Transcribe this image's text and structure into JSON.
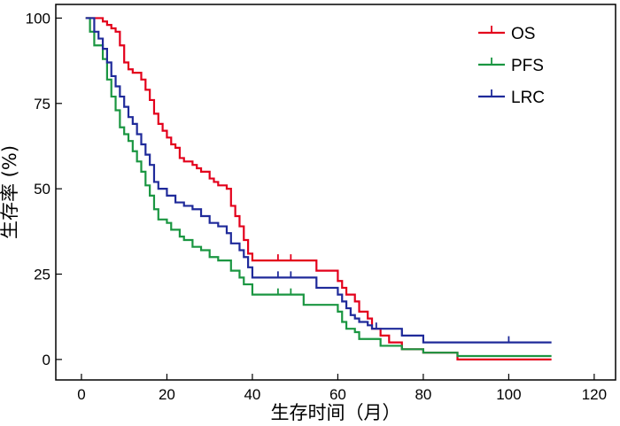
{
  "chart_data": {
    "type": "line",
    "step": true,
    "xlabel": "生存时间（月）",
    "ylabel": "生存率 (%)",
    "xlim": [
      -6,
      125
    ],
    "ylim": [
      -6,
      104
    ],
    "xticks": [
      0,
      20,
      40,
      60,
      80,
      100,
      120
    ],
    "yticks": [
      0,
      25,
      50,
      75,
      100
    ],
    "grid": false,
    "legend_position": "top-right",
    "series": [
      {
        "name": "OS",
        "color": "#e3001b",
        "x": [
          1,
          3,
          5,
          6,
          7,
          8,
          9,
          10,
          11,
          12,
          14,
          15,
          16,
          17,
          18,
          19,
          20,
          21,
          22,
          23,
          24,
          26,
          27,
          28,
          30,
          31,
          32,
          34,
          35,
          36,
          37,
          38,
          39,
          40,
          43,
          46,
          49,
          55,
          60,
          61,
          62,
          64,
          65,
          67,
          68,
          70,
          72,
          75,
          80,
          88,
          110
        ],
        "y": [
          100,
          100,
          99,
          98,
          97,
          96,
          92,
          87,
          85,
          84,
          82,
          79,
          76,
          72,
          69,
          67,
          65,
          63,
          62,
          59,
          58,
          57,
          56,
          55,
          53,
          52,
          51,
          50,
          45,
          42,
          39,
          35,
          31,
          29,
          29,
          29,
          29,
          26,
          23,
          21,
          19,
          17,
          14,
          12,
          9,
          7,
          5,
          3,
          2,
          0,
          0
        ],
        "censored_x": [
          46,
          49
        ]
      },
      {
        "name": "PFS",
        "color": "#1a9641",
        "x": [
          1,
          2,
          3,
          5,
          6,
          7,
          8,
          9,
          10,
          11,
          12,
          13,
          14,
          15,
          16,
          17,
          18,
          20,
          21,
          23,
          24,
          26,
          28,
          30,
          32,
          35,
          37,
          38,
          40,
          46,
          49,
          52,
          60,
          61,
          62,
          64,
          65,
          70,
          75,
          80,
          88,
          110
        ],
        "y": [
          100,
          96,
          92,
          88,
          82,
          77,
          73,
          68,
          66,
          64,
          61,
          58,
          55,
          51,
          48,
          44,
          41,
          40,
          38,
          36,
          35,
          33,
          32,
          30,
          29,
          26,
          24,
          22,
          19,
          19,
          19,
          16,
          14,
          11,
          9,
          8,
          6,
          4,
          3,
          2,
          1,
          1
        ],
        "censored_x": [
          46,
          49
        ]
      },
      {
        "name": "LRC",
        "color": "#1f2a9a",
        "x": [
          1,
          3,
          4,
          5,
          6,
          7,
          8,
          9,
          10,
          11,
          12,
          13,
          14,
          15,
          16,
          17,
          18,
          20,
          22,
          24,
          26,
          28,
          30,
          32,
          34,
          35,
          37,
          38,
          39,
          40,
          46,
          49,
          55,
          60,
          61,
          62,
          63,
          64,
          65,
          67,
          68,
          70,
          75,
          80,
          110
        ],
        "y": [
          100,
          96,
          94,
          91,
          87,
          83,
          80,
          77,
          74,
          71,
          69,
          66,
          63,
          60,
          57,
          52,
          50,
          48,
          46,
          45,
          44,
          42,
          40,
          39,
          37,
          34,
          32,
          30,
          27,
          24,
          24,
          24,
          21,
          19,
          17,
          15,
          13,
          12,
          11,
          10,
          9,
          9,
          7,
          5,
          5
        ],
        "censored_x": [
          46,
          49,
          69,
          75,
          100
        ]
      }
    ]
  }
}
